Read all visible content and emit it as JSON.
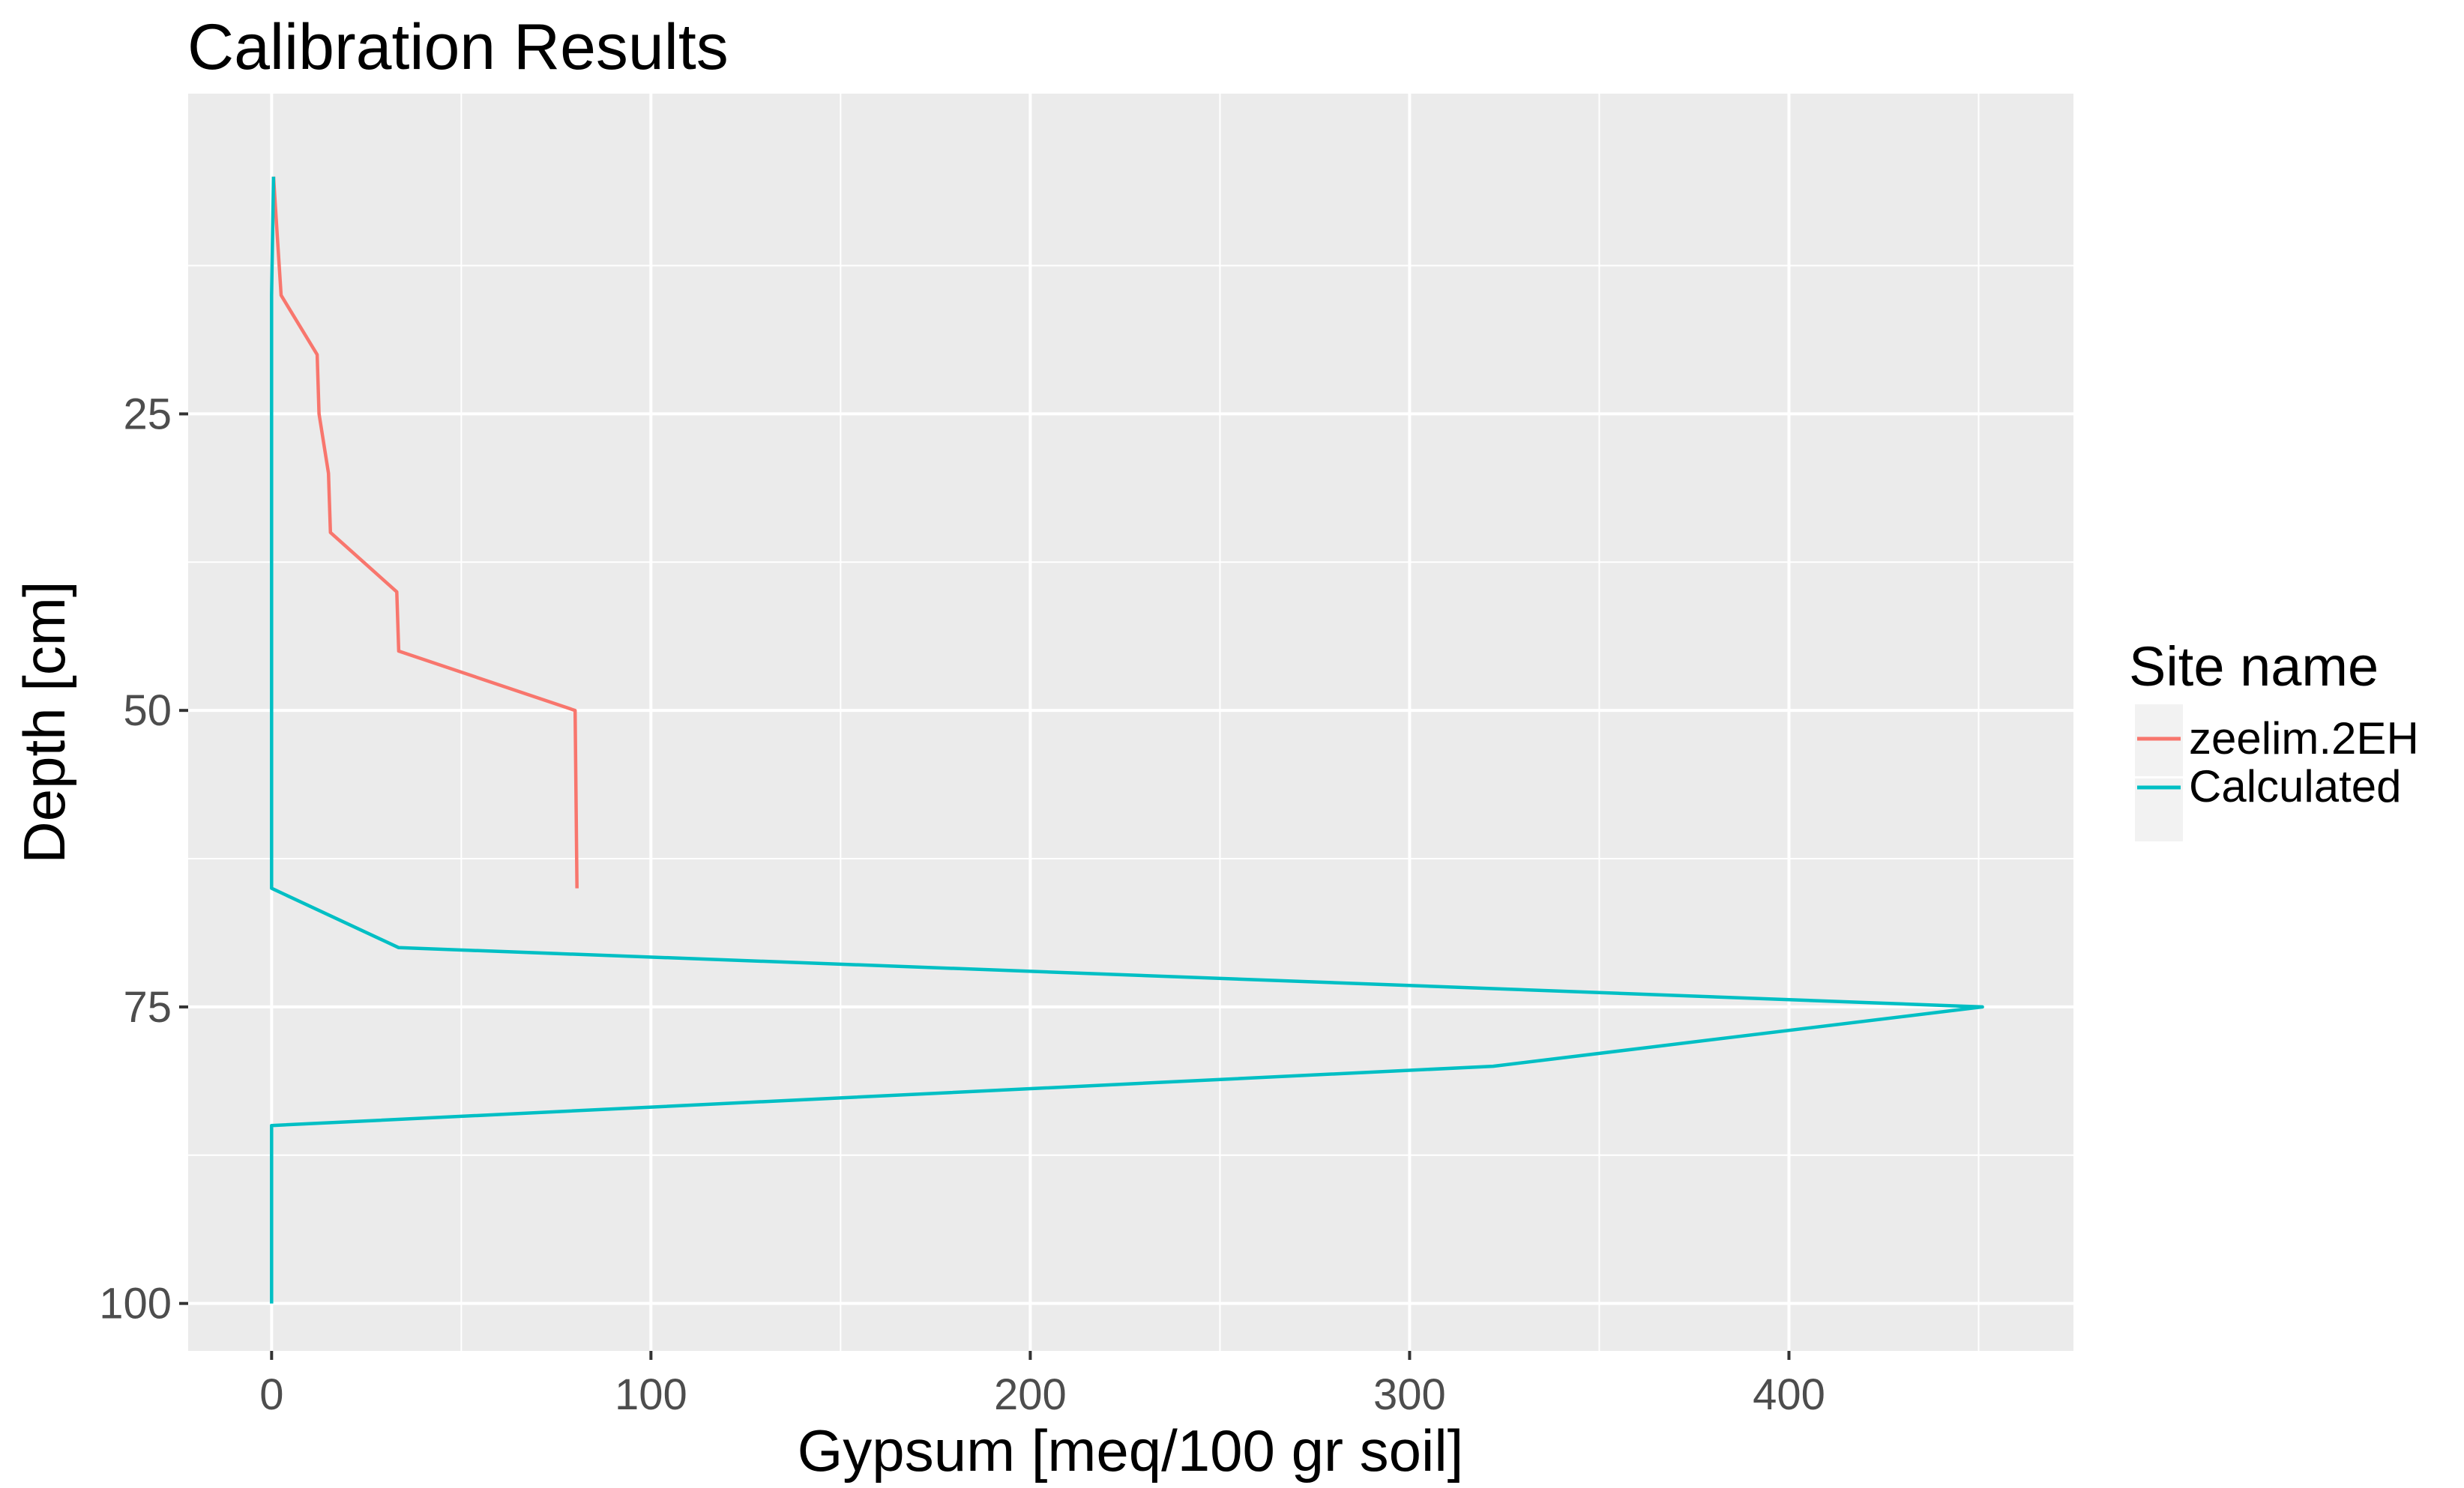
{
  "chart_data": {
    "type": "line",
    "title": "Calibration Results",
    "xlabel": "Gypsum [meq/100 gr soil]",
    "ylabel": "Depth [cm]",
    "xlim": [
      -22,
      475
    ],
    "ylim": [
      -2,
      104
    ],
    "y_reversed": true,
    "x_ticks": [
      0,
      100,
      200,
      300,
      400
    ],
    "x_tick_labels": [
      "0",
      "100",
      "200",
      "300",
      "400"
    ],
    "y_ticks": [
      25,
      50,
      75,
      100
    ],
    "y_tick_labels": [
      "25",
      "50",
      "75",
      "100"
    ],
    "x_minor_gridlines": [
      50,
      150,
      250,
      350,
      450
    ],
    "y_minor_gridlines": [
      12.5,
      37.5,
      62.5,
      87.5
    ],
    "grid": true,
    "panel_background": "#ebebeb",
    "legend": {
      "title": "Site name",
      "position": "right"
    },
    "series": [
      {
        "name": "zeelim.2EH",
        "color": "#f8766d",
        "x": [
          0.5,
          1.5,
          2.5,
          12,
          12.5,
          15,
          15.5,
          33,
          33.5,
          80,
          80.5
        ],
        "y": [
          5,
          10,
          15,
          20,
          25,
          30,
          35,
          40,
          45,
          50,
          65
        ]
      },
      {
        "name": "Calculated",
        "color": "#00bfc4",
        "x": [
          0.5,
          0,
          0,
          33.5,
          451,
          322,
          0,
          0
        ],
        "y": [
          5,
          15,
          65,
          70,
          75,
          80,
          85,
          100
        ]
      }
    ]
  }
}
